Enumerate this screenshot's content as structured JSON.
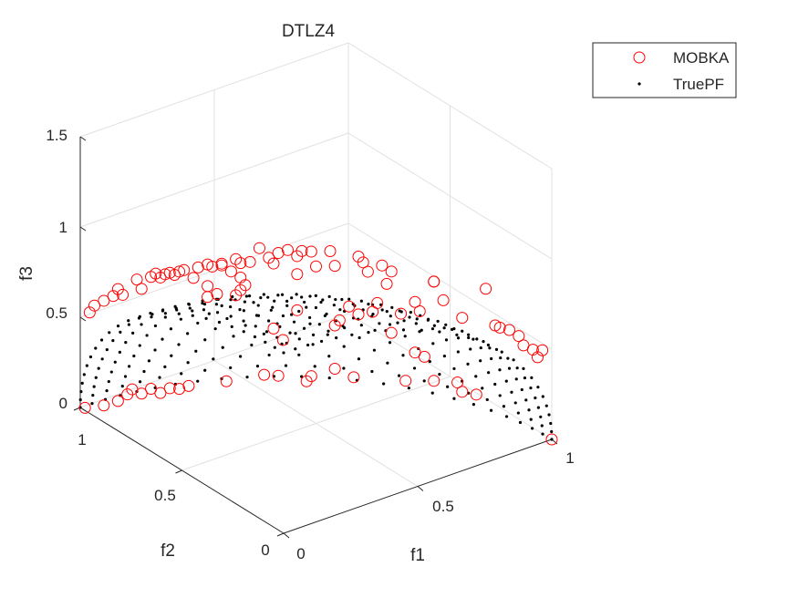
{
  "chart_data": {
    "type": "scatter",
    "dimensions": 3,
    "title": "DTLZ4",
    "xlabel": "f1",
    "ylabel": "f2",
    "zlabel": "f3",
    "xlim": [
      0,
      1
    ],
    "ylim": [
      0,
      1
    ],
    "zlim": [
      0,
      1.5
    ],
    "xticks": [
      "0",
      "0.5",
      "1"
    ],
    "yticks": [
      "0",
      "0.5",
      "1"
    ],
    "zticks": [
      "0",
      "0.5",
      "1",
      "1.5"
    ],
    "grid": true,
    "view": "3-D, azimuth approx. 127.5 deg, elevation approx. 30 deg",
    "legend": {
      "placement": "top-right",
      "entries": [
        {
          "label": "MOBKA",
          "marker": "circle",
          "color": "#ff0000"
        },
        {
          "label": "TruePF",
          "marker": "dot",
          "color": "#000000"
        }
      ]
    },
    "series": [
      {
        "name": "MOBKA",
        "marker": "circle",
        "color": "#ff0000",
        "points": [
          [
            0.02,
            0.98,
            0.53
          ],
          [
            0.03,
            0.97,
            0.57
          ],
          [
            0.05,
            0.95,
            0.6
          ],
          [
            0.07,
            0.93,
            0.63
          ],
          [
            0.08,
            0.92,
            0.67
          ],
          [
            0.09,
            0.91,
            0.64
          ],
          [
            0.12,
            0.88,
            0.73
          ],
          [
            0.13,
            0.87,
            0.68
          ],
          [
            0.15,
            0.85,
            0.75
          ],
          [
            0.16,
            0.84,
            0.77
          ],
          [
            0.17,
            0.83,
            0.75
          ],
          [
            0.18,
            0.82,
            0.77
          ],
          [
            0.19,
            0.81,
            0.78
          ],
          [
            0.2,
            0.8,
            0.77
          ],
          [
            0.21,
            0.79,
            0.79
          ],
          [
            0.22,
            0.78,
            0.8
          ],
          [
            0.24,
            0.76,
            0.76
          ],
          [
            0.25,
            0.75,
            0.82
          ],
          [
            0.27,
            0.73,
            0.84
          ],
          [
            0.28,
            0.72,
            0.83
          ],
          [
            0.27,
            0.73,
            0.72
          ],
          [
            0.3,
            0.7,
            0.85
          ],
          [
            0.3,
            0.7,
            0.84
          ],
          [
            0.32,
            0.68,
            0.81
          ],
          [
            0.33,
            0.67,
            0.88
          ],
          [
            0.34,
            0.66,
            0.86
          ],
          [
            0.36,
            0.64,
            0.87
          ],
          [
            0.38,
            0.62,
            0.95
          ],
          [
            0.4,
            0.6,
            0.9
          ],
          [
            0.41,
            0.59,
            0.87
          ],
          [
            0.42,
            0.58,
            0.93
          ],
          [
            0.44,
            0.56,
            0.95
          ],
          [
            0.46,
            0.54,
            0.92
          ],
          [
            0.47,
            0.53,
            0.95
          ],
          [
            0.49,
            0.51,
            0.95
          ],
          [
            0.5,
            0.5,
            0.87
          ],
          [
            0.46,
            0.54,
            0.82
          ],
          [
            0.53,
            0.47,
            0.96
          ],
          [
            0.54,
            0.46,
            0.88
          ],
          [
            0.27,
            0.73,
            0.66
          ],
          [
            0.29,
            0.71,
            0.68
          ],
          [
            0.34,
            0.66,
            0.78
          ],
          [
            0.34,
            0.66,
            0.71
          ],
          [
            0.35,
            0.65,
            0.74
          ],
          [
            0.33,
            0.67,
            0.68
          ],
          [
            0.59,
            0.41,
            0.94
          ],
          [
            0.6,
            0.4,
            0.91
          ],
          [
            0.61,
            0.39,
            0.86
          ],
          [
            0.64,
            0.36,
            0.9
          ],
          [
            0.66,
            0.34,
            0.87
          ],
          [
            0.65,
            0.35,
            0.8
          ],
          [
            0.75,
            0.25,
            0.83
          ],
          [
            0.75,
            0.25,
            0.83
          ],
          [
            0.77,
            0.23,
            0.73
          ],
          [
            0.86,
            0.14,
            0.81
          ],
          [
            0.71,
            0.29,
            0.71
          ],
          [
            0.72,
            0.28,
            0.66
          ],
          [
            0.81,
            0.19,
            0.64
          ],
          [
            0.88,
            0.12,
            0.61
          ],
          [
            0.89,
            0.11,
            0.6
          ],
          [
            0.91,
            0.09,
            0.59
          ],
          [
            0.93,
            0.07,
            0.56
          ],
          [
            0.94,
            0.06,
            0.51
          ],
          [
            0.96,
            0.04,
            0.49
          ],
          [
            0.98,
            0.02,
            0.49
          ],
          [
            0.97,
            0.03,
            0.45
          ],
          [
            0.46,
            0.54,
            0.62
          ],
          [
            0.43,
            0.57,
            0.45
          ],
          [
            0.41,
            0.59,
            0.51
          ],
          [
            0.57,
            0.43,
            0.66
          ],
          [
            0.59,
            0.41,
            0.62
          ],
          [
            0.62,
            0.38,
            0.64
          ],
          [
            0.55,
            0.45,
            0.58
          ],
          [
            0.54,
            0.46,
            0.55
          ],
          [
            0.63,
            0.37,
            0.69
          ],
          [
            0.68,
            0.32,
            0.64
          ],
          [
            0.66,
            0.34,
            0.53
          ],
          [
            0.71,
            0.29,
            0.43
          ],
          [
            0.73,
            0.27,
            0.41
          ],
          [
            0.49,
            0.51,
            0.26
          ],
          [
            0.54,
            0.46,
            0.31
          ],
          [
            0.48,
            0.52,
            0.23
          ],
          [
            0.58,
            0.42,
            0.27
          ],
          [
            0.69,
            0.31,
            0.27
          ],
          [
            0.75,
            0.25,
            0.28
          ],
          [
            0.8,
            0.2,
            0.28
          ],
          [
            0.81,
            0.19,
            0.23
          ],
          [
            0.84,
            0.16,
            0.22
          ],
          [
            0.01,
            0.99,
            0.0
          ],
          [
            0.05,
            0.95,
            0.02
          ],
          [
            0.08,
            0.92,
            0.05
          ],
          [
            0.1,
            0.9,
            0.09
          ],
          [
            0.11,
            0.89,
            0.12
          ],
          [
            0.13,
            0.87,
            0.1
          ],
          [
            0.15,
            0.85,
            0.13
          ],
          [
            0.17,
            0.83,
            0.11
          ],
          [
            0.19,
            0.81,
            0.14
          ],
          [
            0.21,
            0.79,
            0.14
          ],
          [
            0.23,
            0.77,
            0.16
          ],
          [
            0.31,
            0.69,
            0.2
          ],
          [
            0.39,
            0.61,
            0.25
          ],
          [
            0.42,
            0.58,
            0.25
          ],
          [
            1.0,
            0.0,
            0.0
          ]
        ]
      },
      {
        "name": "TruePF",
        "marker": "dot",
        "color": "#000000",
        "surface": "f1^2 + f2^2 + f3^2 = 1 (first octant)",
        "sampling": "uniform simplex reference points, normalized to the unit sphere",
        "divisions": 24
      }
    ]
  }
}
